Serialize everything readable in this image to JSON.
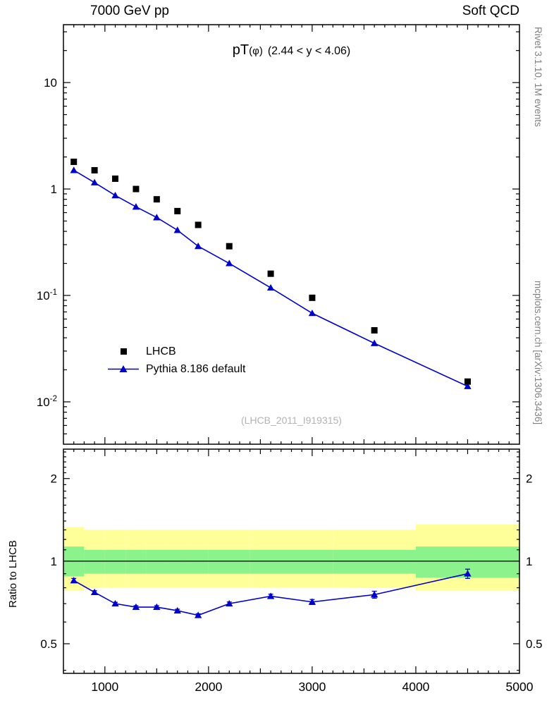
{
  "header": {
    "left": "7000 GeV pp",
    "right": "Soft QCD"
  },
  "title": {
    "prefix": "pT",
    "particle": "(φ)",
    "range": "(2.44 < y < 4.06)"
  },
  "watermark": "(LHCB_2011_I919315)",
  "side_notes": {
    "top_right": "Rivet 3.1.10,  1M events",
    "bottom_right": "mcplots.cern.ch [arXiv:1306.3436]"
  },
  "ratio_panel": {
    "ylabel": "Ratio to LHCB"
  },
  "legend": [
    {
      "label": "LHCB",
      "marker": "black-square"
    },
    {
      "label": "Pythia 8.186 default",
      "marker": "blue-triangle-line"
    }
  ],
  "colors": {
    "mc_line": "#0000cd",
    "data_marker": "#000000",
    "band_yellow": "#ffff99",
    "band_green": "#8cf28c",
    "ref_line": "#000000",
    "note_gray": "#808080",
    "watermark_gray": "#b3b3b3"
  },
  "chart_data": {
    "type": "line",
    "title": "pT(φ) (2.44 < y < 4.06)",
    "legend_position": "left-middle",
    "grid": false,
    "x": [
      700,
      900,
      1100,
      1300,
      1500,
      1700,
      1900,
      2200,
      2600,
      3000,
      3600,
      4500
    ],
    "bin_edges": [
      600,
      800,
      1000,
      1200,
      1400,
      1600,
      1800,
      2000,
      2400,
      2800,
      3200,
      4000,
      5000
    ],
    "xlim": [
      600,
      5000
    ],
    "main_ylim": [
      0.004,
      35
    ],
    "ratio_ylim": [
      0.39,
      2.56
    ],
    "x_major_ticks": [
      1000,
      2000,
      3000,
      4000,
      5000
    ],
    "main_y_ticks": [
      {
        "v": 10,
        "base": "10",
        "exp": ""
      },
      {
        "v": 1,
        "base": "1",
        "exp": ""
      },
      {
        "v": 0.1,
        "base": "10",
        "exp": "-1"
      },
      {
        "v": 0.01,
        "base": "10",
        "exp": "-2"
      }
    ],
    "ratio_y_ticks": [
      {
        "v": 2,
        "label": "2"
      },
      {
        "v": 1,
        "label": "1"
      },
      {
        "v": 0.5,
        "label": "0.5"
      }
    ],
    "series": [
      {
        "name": "LHCB",
        "role": "data",
        "values": [
          1.8,
          1.5,
          1.25,
          1.0,
          0.8,
          0.62,
          0.46,
          0.29,
          0.16,
          0.095,
          0.047,
          0.0155
        ],
        "errors": [
          0.06,
          0.05,
          0.04,
          0.035,
          0.03,
          0.022,
          0.017,
          0.011,
          0.007,
          0.004,
          0.0022,
          0.001
        ]
      },
      {
        "name": "Pythia 8.186 default",
        "role": "mc",
        "values": [
          1.5,
          1.15,
          0.87,
          0.68,
          0.54,
          0.41,
          0.29,
          0.2,
          0.118,
          0.068,
          0.0355,
          0.014
        ]
      }
    ],
    "ratio": {
      "name": "Pythia 8.186 default / LHCB",
      "values": [
        0.85,
        0.77,
        0.7,
        0.68,
        0.68,
        0.66,
        0.635,
        0.7,
        0.745,
        0.71,
        0.755,
        0.9
      ],
      "errors": [
        0.015,
        0.01,
        0.008,
        0.008,
        0.008,
        0.008,
        0.008,
        0.01,
        0.013,
        0.015,
        0.022,
        0.035
      ],
      "band_yellow_lo": [
        0.78,
        0.8,
        0.8,
        0.8,
        0.8,
        0.8,
        0.8,
        0.8,
        0.8,
        0.8,
        0.8,
        0.78
      ],
      "band_yellow_hi": [
        1.33,
        1.3,
        1.3,
        1.3,
        1.3,
        1.3,
        1.3,
        1.3,
        1.3,
        1.3,
        1.3,
        1.36
      ],
      "band_green_lo": [
        0.88,
        0.9,
        0.9,
        0.9,
        0.9,
        0.9,
        0.9,
        0.9,
        0.9,
        0.9,
        0.9,
        0.87
      ],
      "band_green_hi": [
        1.13,
        1.1,
        1.1,
        1.1,
        1.1,
        1.1,
        1.1,
        1.1,
        1.1,
        1.1,
        1.1,
        1.13
      ]
    }
  }
}
